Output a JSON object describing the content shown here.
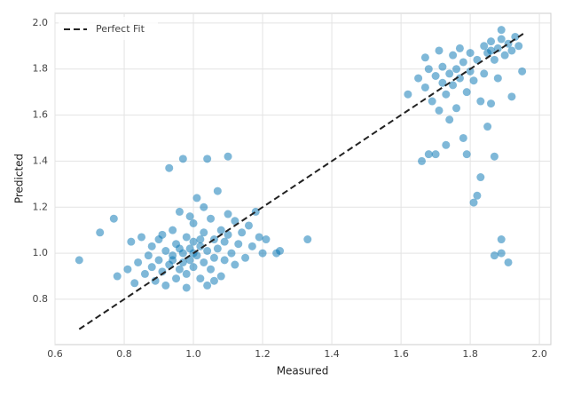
{
  "chart_data": {
    "type": "scatter",
    "xlabel": "Measured",
    "ylabel": "Predicted",
    "xlim": [
      0.6,
      2.033
    ],
    "ylim": [
      0.603,
      2.042
    ],
    "xticks": [
      0.6,
      0.8,
      {
        "value": 1,
        "label": "1.0"
      },
      1.2,
      1.4,
      1.6,
      1.8,
      {
        "value": 2,
        "label": "2.0"
      }
    ],
    "yticks": [
      0.8,
      {
        "value": 1,
        "label": "1.0"
      },
      1.2,
      1.4,
      1.6,
      1.8,
      {
        "value": 2,
        "label": "2.0"
      }
    ],
    "grid": true,
    "legend": "upper-left",
    "series": [
      {
        "type": "scatter",
        "color": "#0072b2",
        "x": [
          0.67,
          0.73,
          0.77,
          0.78,
          0.81,
          0.82,
          0.83,
          0.84,
          0.85,
          0.86,
          0.87,
          0.88,
          0.88,
          0.89,
          0.9,
          0.9,
          0.91,
          0.92,
          0.92,
          0.93,
          0.93,
          0.94,
          0.94,
          0.95,
          0.95,
          0.96,
          0.96,
          0.97,
          0.97,
          0.97,
          0.98,
          0.98,
          0.99,
          0.99,
          1.0,
          1.0,
          1.0,
          1.01,
          1.01,
          1.02,
          1.02,
          1.03,
          1.03,
          1.04,
          1.04,
          1.05,
          1.05,
          1.06,
          1.06,
          1.07,
          1.07,
          1.08,
          1.08,
          1.09,
          1.09,
          1.1,
          1.1,
          1.11,
          1.12,
          1.12,
          1.13,
          1.14,
          1.15,
          1.16,
          1.17,
          1.18,
          1.19,
          1.2,
          1.21,
          1.24,
          1.25,
          1.33,
          1.04,
          0.98,
          1.06,
          0.91,
          1.03,
          0.99,
          1.1,
          1.02,
          0.96,
          0.94,
          1.0,
          1.62,
          1.65,
          1.66,
          1.67,
          1.67,
          1.68,
          1.68,
          1.69,
          1.7,
          1.7,
          1.71,
          1.71,
          1.72,
          1.72,
          1.73,
          1.73,
          1.74,
          1.74,
          1.75,
          1.75,
          1.76,
          1.76,
          1.77,
          1.77,
          1.78,
          1.78,
          1.79,
          1.79,
          1.8,
          1.8,
          1.81,
          1.81,
          1.82,
          1.82,
          1.83,
          1.83,
          1.84,
          1.84,
          1.85,
          1.85,
          1.86,
          1.86,
          1.87,
          1.87,
          1.87,
          1.88,
          1.88,
          1.89,
          1.89,
          1.89,
          1.9,
          1.91,
          1.91,
          1.92,
          1.92,
          1.93,
          1.94,
          1.95,
          1.89,
          1.86
        ],
        "y": [
          0.97,
          1.09,
          1.15,
          0.9,
          0.93,
          1.05,
          0.87,
          0.96,
          1.07,
          0.91,
          0.99,
          0.94,
          1.03,
          0.88,
          0.97,
          1.06,
          0.92,
          1.01,
          0.86,
          1.37,
          0.95,
          1.1,
          0.99,
          0.89,
          1.04,
          0.93,
          1.18,
          1.41,
          1.0,
          0.96,
          1.07,
          0.91,
          1.02,
          0.97,
          1.13,
          0.94,
          1.05,
          0.99,
          1.24,
          0.89,
          1.03,
          1.09,
          0.96,
          1.41,
          1.01,
          0.93,
          1.15,
          1.06,
          0.98,
          1.27,
          1.02,
          0.9,
          1.1,
          1.05,
          0.97,
          1.42,
          1.08,
          1.0,
          1.14,
          0.95,
          1.04,
          1.09,
          0.98,
          1.12,
          1.03,
          1.18,
          1.07,
          1.0,
          1.06,
          1.0,
          1.01,
          1.06,
          0.86,
          0.85,
          0.88,
          1.08,
          1.2,
          1.16,
          1.17,
          1.06,
          1.02,
          0.97,
          1.0,
          1.69,
          1.76,
          1.4,
          1.85,
          1.72,
          1.43,
          1.8,
          1.66,
          1.43,
          1.77,
          1.88,
          1.62,
          1.74,
          1.81,
          1.47,
          1.69,
          1.78,
          1.58,
          1.86,
          1.73,
          1.8,
          1.63,
          1.76,
          1.89,
          1.5,
          1.83,
          1.43,
          1.7,
          1.79,
          1.87,
          1.22,
          1.75,
          1.25,
          1.84,
          1.33,
          1.66,
          1.9,
          1.78,
          1.55,
          1.87,
          1.65,
          1.92,
          0.99,
          1.42,
          1.84,
          1.89,
          1.76,
          1.06,
          1.0,
          1.93,
          1.86,
          0.96,
          1.91,
          1.68,
          1.88,
          1.94,
          1.9,
          1.79,
          1.97,
          1.88
        ]
      },
      {
        "type": "line",
        "name": "Perfect Fit",
        "color": "#222222",
        "x": [
          0.67,
          1.96
        ],
        "y": [
          0.67,
          1.96
        ]
      }
    ]
  }
}
